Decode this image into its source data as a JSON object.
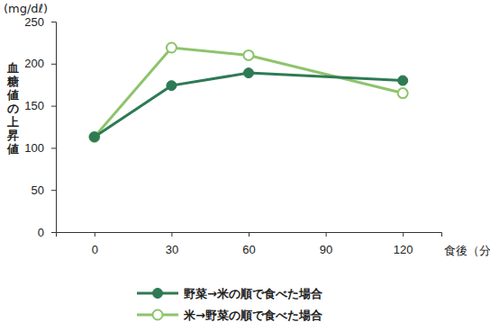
{
  "chart_data": {
    "type": "line",
    "y_label": "血糖値の上昇値",
    "y_unit": "(mg/dℓ)",
    "x_label": "食後（分）",
    "x": [
      0,
      30,
      60,
      120
    ],
    "xlim": [
      -15,
      135
    ],
    "xticks": [
      0,
      30,
      60,
      90,
      120
    ],
    "ylim": [
      0,
      250
    ],
    "yticks": [
      0,
      50,
      100,
      150,
      200,
      250
    ],
    "grid": false,
    "legend": "bottom",
    "series": [
      {
        "name": "野菜→米の順で食べた場合",
        "color": "#2e7a55",
        "marker": "circle",
        "line_style": "solid",
        "values": [
          113,
          174,
          189,
          180
        ]
      },
      {
        "name": "米→野菜の順で食べた場合",
        "color": "#8dc46b",
        "marker": "circle-open",
        "line_style": "solid",
        "values": [
          113,
          219,
          210,
          165
        ]
      }
    ]
  }
}
